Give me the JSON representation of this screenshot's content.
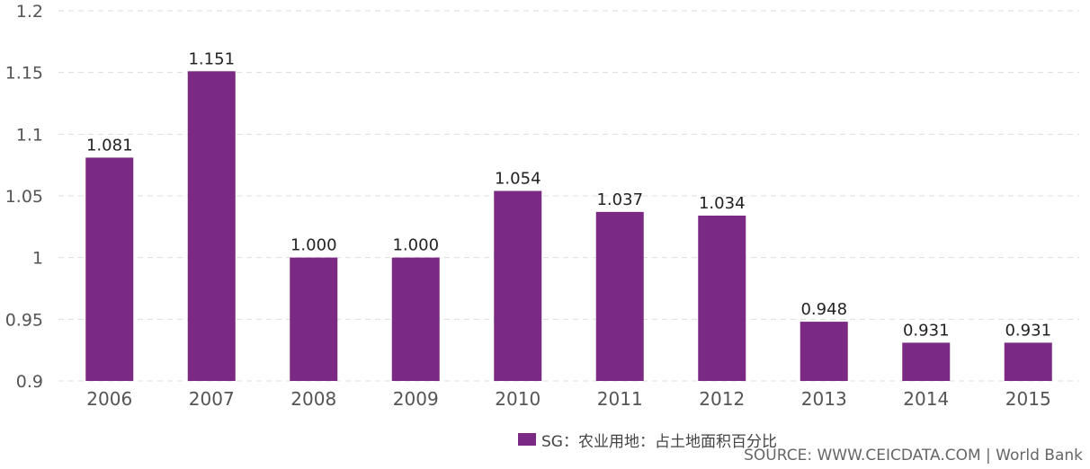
{
  "chart_data": {
    "type": "bar",
    "categories": [
      "2006",
      "2007",
      "2008",
      "2009",
      "2010",
      "2011",
      "2012",
      "2013",
      "2014",
      "2015"
    ],
    "series": [
      {
        "name": "SG：农业用地：占土地面积百分比",
        "values": [
          1.081,
          1.151,
          1.0,
          1.0,
          1.054,
          1.037,
          1.034,
          0.948,
          0.931,
          0.931
        ],
        "labels": [
          "1.081",
          "1.151",
          "1.000",
          "1.000",
          "1.054",
          "1.037",
          "1.034",
          "0.948",
          "0.931",
          "0.931"
        ]
      }
    ],
    "ylim": [
      0.9,
      1.2
    ],
    "yticks": [
      {
        "value": 0.9,
        "label": "0.9"
      },
      {
        "value": 0.95,
        "label": "0.95"
      },
      {
        "value": 1.0,
        "label": "1"
      },
      {
        "value": 1.05,
        "label": "1.05"
      },
      {
        "value": 1.1,
        "label": "1.1"
      },
      {
        "value": 1.15,
        "label": "1.15"
      },
      {
        "value": 1.2,
        "label": "1.2"
      }
    ],
    "grid": true,
    "legend_position": "bottom-center",
    "bar_color": "#7b2a84"
  },
  "source_text": "SOURCE: WWW.CEICDATA.COM | World Bank"
}
